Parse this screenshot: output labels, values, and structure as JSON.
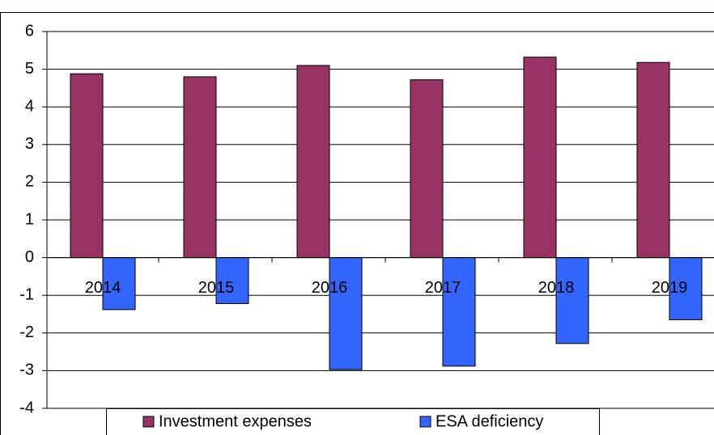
{
  "chart_data": {
    "type": "bar",
    "categories": [
      "2014",
      "2015",
      "2016",
      "2017",
      "2018",
      "2019"
    ],
    "series": [
      {
        "name": "Investment expenses",
        "color": "#993366",
        "values": [
          4.88,
          4.8,
          5.1,
          4.72,
          5.32,
          5.18
        ]
      },
      {
        "name": "ESA deficiency",
        "color": "#3366ff",
        "values": [
          -1.38,
          -1.22,
          -2.97,
          -2.88,
          -2.28,
          -1.65
        ]
      }
    ],
    "ylim": [
      -4,
      6
    ],
    "yticks": [
      -4,
      -3,
      -2,
      -1,
      0,
      1,
      2,
      3,
      4,
      5,
      6
    ],
    "grid": true,
    "legend": "bottom"
  }
}
